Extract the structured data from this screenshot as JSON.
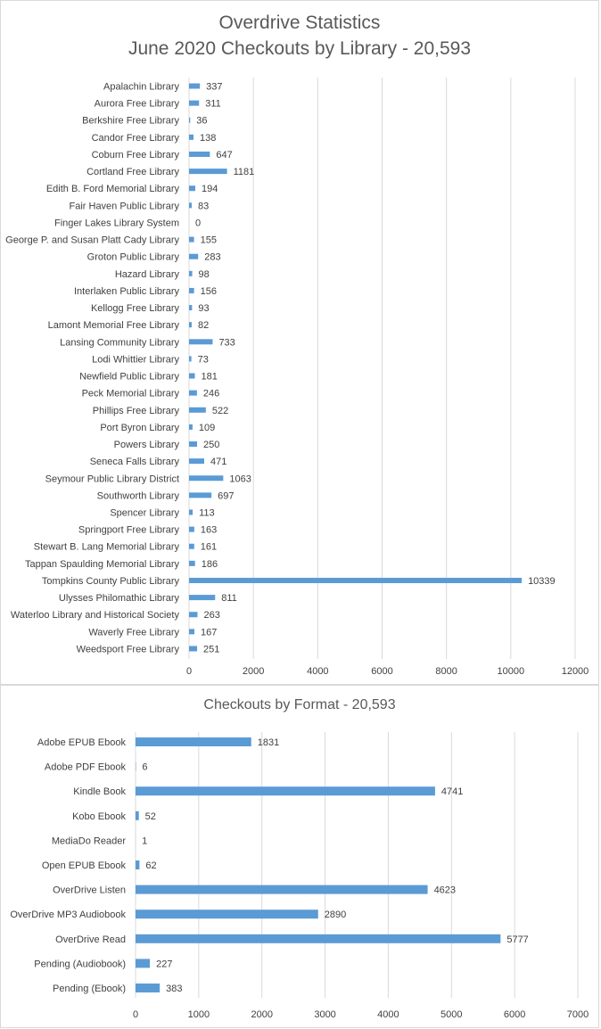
{
  "colors": {
    "bar": "#5b9bd5",
    "grid": "#d9d9d9",
    "text": "#404040",
    "title": "#595959"
  },
  "chart_data": [
    {
      "type": "bar",
      "orientation": "horizontal",
      "title": "Overdrive Statistics",
      "subtitle": "June 2020 Checkouts by Library - 20,593",
      "xlim": [
        0,
        12000
      ],
      "x_ticks": [
        0,
        2000,
        4000,
        6000,
        8000,
        10000,
        12000
      ],
      "grid": true,
      "data_labels": true,
      "categories": [
        "Apalachin Library",
        "Aurora Free Library",
        "Berkshire Free Library",
        "Candor Free Library",
        "Coburn Free Library",
        "Cortland Free Library",
        "Edith B. Ford Memorial Library",
        "Fair Haven Public Library",
        "Finger Lakes Library System",
        "George P. and Susan Platt Cady Library",
        "Groton Public Library",
        "Hazard Library",
        "Interlaken Public Library",
        "Kellogg Free Library",
        "Lamont Memorial Free Library",
        "Lansing Community Library",
        "Lodi Whittier Library",
        "Newfield Public Library",
        "Peck Memorial Library",
        "Phillips Free Library",
        "Port Byron Library",
        "Powers Library",
        "Seneca Falls Library",
        "Seymour Public Library District",
        "Southworth Library",
        "Spencer Library",
        "Springport Free Library",
        "Stewart B. Lang Memorial Library",
        "Tappan Spaulding Memorial Library",
        "Tompkins County Public Library",
        "Ulysses Philomathic Library",
        "Waterloo Library and Historical Society",
        "Waverly Free Library",
        "Weedsport Free Library"
      ],
      "values": [
        337,
        311,
        36,
        138,
        647,
        1181,
        194,
        83,
        0,
        155,
        283,
        98,
        156,
        93,
        82,
        733,
        73,
        181,
        246,
        522,
        109,
        250,
        471,
        1063,
        697,
        113,
        163,
        161,
        186,
        10339,
        811,
        263,
        167,
        251
      ]
    },
    {
      "type": "bar",
      "orientation": "horizontal",
      "title": "Checkouts by Format - 20,593",
      "xlim": [
        0,
        7000
      ],
      "x_ticks": [
        0,
        1000,
        2000,
        3000,
        4000,
        5000,
        6000,
        7000
      ],
      "grid": true,
      "data_labels": true,
      "categories": [
        "Adobe EPUB Ebook",
        "Adobe PDF Ebook",
        "Kindle Book",
        "Kobo Ebook",
        "MediaDo Reader",
        "Open EPUB Ebook",
        "OverDrive Listen",
        "OverDrive MP3 Audiobook",
        "OverDrive Read",
        "Pending (Audiobook)",
        "Pending (Ebook)"
      ],
      "values": [
        1831,
        6,
        4741,
        52,
        1,
        62,
        4623,
        2890,
        5777,
        227,
        383
      ]
    }
  ]
}
